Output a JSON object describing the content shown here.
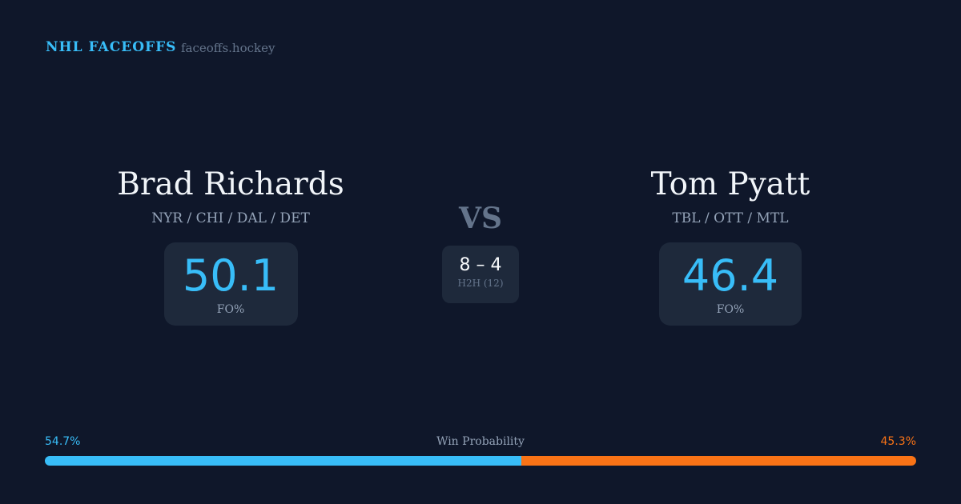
{
  "header": {
    "brand": "NHL FACEOFFS",
    "site": "faceoffs.hockey"
  },
  "left_player": {
    "name": "Brad Richards",
    "teams": "NYR / CHI / DAL / DET",
    "fo_pct": "50.1",
    "fo_label": "FO%"
  },
  "right_player": {
    "name": "Tom Pyatt",
    "teams": "TBL / OTT / MTL",
    "fo_pct": "46.4",
    "fo_label": "FO%"
  },
  "versus": {
    "label": "VS",
    "h2h_score": "8 – 4",
    "h2h_label": "H2H (12)"
  },
  "win_probability": {
    "label": "Win Probability",
    "left_text": "54.7%",
    "right_text": "45.3%",
    "left_value": 54.7,
    "right_value": 45.3,
    "left_color": "#38bdf8",
    "right_color": "#f97316"
  }
}
